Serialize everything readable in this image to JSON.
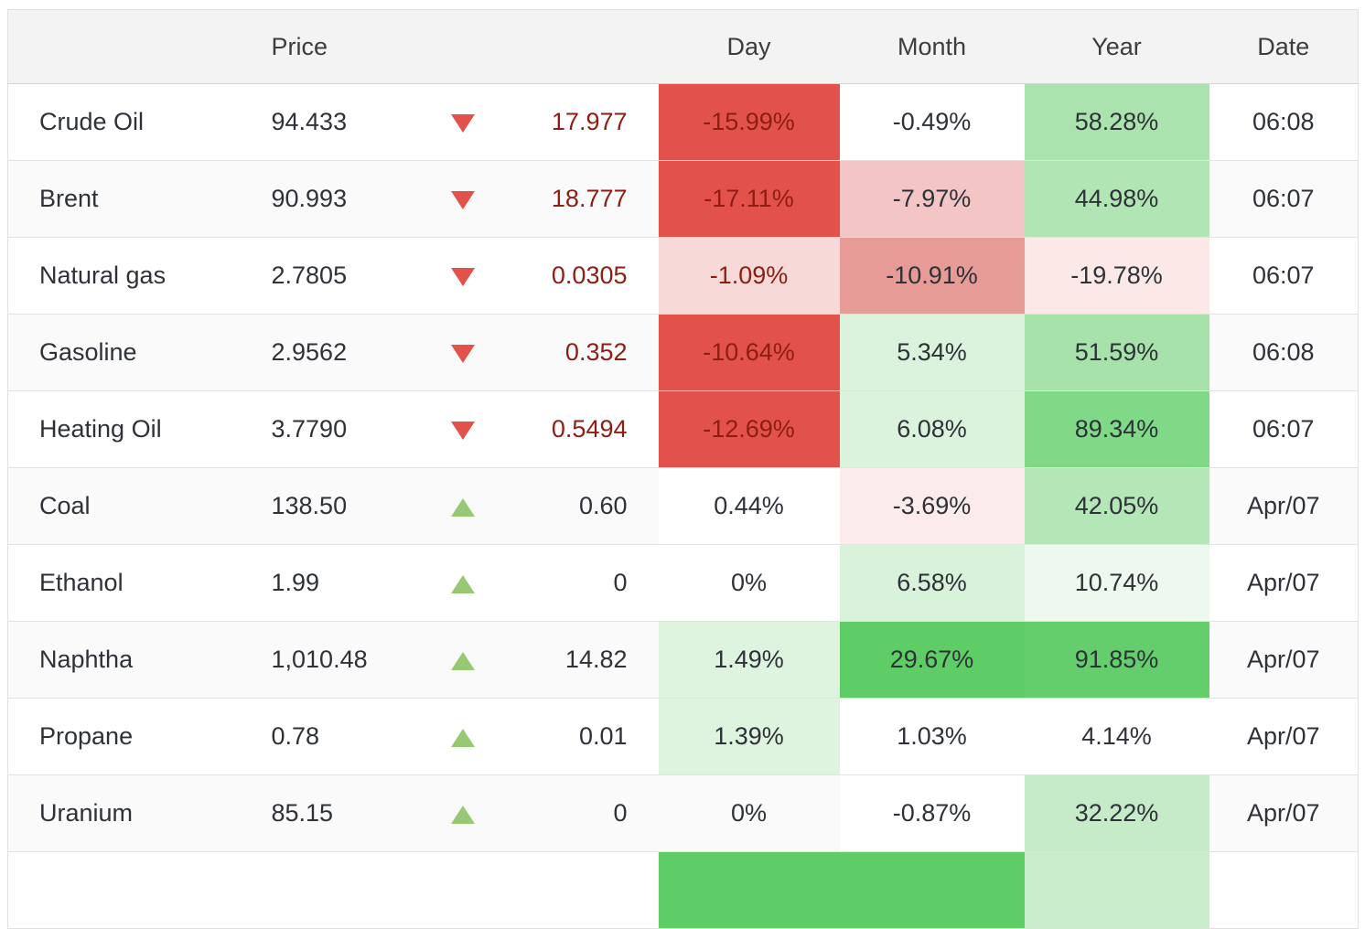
{
  "header": {
    "name": "",
    "price": "Price",
    "day": "Day",
    "month": "Month",
    "year": "Year",
    "date": "Date"
  },
  "colors": {
    "strong_red": "#e2524b",
    "dark_red_text": "#8e1d12",
    "medium_red": "#e79b97",
    "light_red": "#f3c6c5",
    "very_light_red": "#f7d9d8",
    "faint_red": "#fbe8e7",
    "strong_green": "#5ecd66",
    "medium_green": "#7fd986",
    "light_green": "#abe3ae",
    "pale_green": "#dbf3dc",
    "faint_green": "#edf9ee",
    "arrow_up_green": "#97c873",
    "arrow_down_red": "#e2524b",
    "header_bg": "#f3f3f3",
    "row_alt_bg": "#fafafa",
    "text": "#2e3238"
  },
  "rows": [
    {
      "name": "Crude Oil",
      "price": "94.433",
      "direction": "down",
      "change": "17.977",
      "change_color": "#8e1d12",
      "day": {
        "text": "-15.99%",
        "bg": "#e2524b",
        "color": "#8e1d12"
      },
      "month": {
        "text": "-0.49%",
        "bg": "#ffffff",
        "color": "#2e3238"
      },
      "year": {
        "text": "58.28%",
        "bg": "#abe3ae",
        "color": "#2e3238"
      },
      "date": "06:08"
    },
    {
      "name": "Brent",
      "price": "90.993",
      "direction": "down",
      "change": "18.777",
      "change_color": "#8e1d12",
      "day": {
        "text": "-17.11%",
        "bg": "#e2524b",
        "color": "#8e1d12"
      },
      "month": {
        "text": "-7.97%",
        "bg": "#f3c6c5",
        "color": "#2e3238"
      },
      "year": {
        "text": "44.98%",
        "bg": "#b2e5b4",
        "color": "#2e3238"
      },
      "date": "06:07"
    },
    {
      "name": "Natural gas",
      "price": "2.7805",
      "direction": "down",
      "change": "0.0305",
      "change_color": "#8e1d12",
      "day": {
        "text": "-1.09%",
        "bg": "#f7d9d8",
        "color": "#8e1d12"
      },
      "month": {
        "text": "-10.91%",
        "bg": "#e79b97",
        "color": "#2e3238"
      },
      "year": {
        "text": "-19.78%",
        "bg": "#fbe8e7",
        "color": "#2e3238"
      },
      "date": "06:07"
    },
    {
      "name": "Gasoline",
      "price": "2.9562",
      "direction": "down",
      "change": "0.352",
      "change_color": "#8e1d12",
      "day": {
        "text": "-10.64%",
        "bg": "#e2524b",
        "color": "#8e1d12"
      },
      "month": {
        "text": "5.34%",
        "bg": "#dbf3dc",
        "color": "#2e3238"
      },
      "year": {
        "text": "51.59%",
        "bg": "#a7e2ab",
        "color": "#2e3238"
      },
      "date": "06:08"
    },
    {
      "name": "Heating Oil",
      "price": "3.7790",
      "direction": "down",
      "change": "0.5494",
      "change_color": "#8e1d12",
      "day": {
        "text": "-12.69%",
        "bg": "#e2524b",
        "color": "#8e1d12"
      },
      "month": {
        "text": "6.08%",
        "bg": "#dbf3dc",
        "color": "#2e3238"
      },
      "year": {
        "text": "89.34%",
        "bg": "#7fd986",
        "color": "#2e3238"
      },
      "date": "06:07"
    },
    {
      "name": "Coal",
      "price": "138.50",
      "direction": "up",
      "change": "0.60",
      "change_color": "#2e3238",
      "day": {
        "text": "0.44%",
        "bg": "#ffffff",
        "color": "#2e3238"
      },
      "month": {
        "text": "-3.69%",
        "bg": "#fbeceb",
        "color": "#2e3238"
      },
      "year": {
        "text": "42.05%",
        "bg": "#b5e6b8",
        "color": "#2e3238"
      },
      "date": "Apr/07"
    },
    {
      "name": "Ethanol",
      "price": "1.99",
      "direction": "up",
      "change": "0",
      "change_color": "#2e3238",
      "day": {
        "text": "0%",
        "bg": null,
        "color": "#2e3238"
      },
      "month": {
        "text": "6.58%",
        "bg": "#d9f2da",
        "color": "#2e3238"
      },
      "year": {
        "text": "10.74%",
        "bg": "#edf9ee",
        "color": "#2e3238"
      },
      "date": "Apr/07"
    },
    {
      "name": "Naphtha",
      "price": "1,010.48",
      "direction": "up",
      "change": "14.82",
      "change_color": "#2e3238",
      "day": {
        "text": "1.49%",
        "bg": "#def4df",
        "color": "#2e3238"
      },
      "month": {
        "text": "29.67%",
        "bg": "#5ecd66",
        "color": "#2e3238"
      },
      "year": {
        "text": "91.85%",
        "bg": "#63ce6b",
        "color": "#2e3238"
      },
      "date": "Apr/07"
    },
    {
      "name": "Propane",
      "price": "0.78",
      "direction": "up",
      "change": "0.01",
      "change_color": "#2e3238",
      "day": {
        "text": "1.39%",
        "bg": "#def4df",
        "color": "#2e3238"
      },
      "month": {
        "text": "1.03%",
        "bg": "#ffffff",
        "color": "#2e3238"
      },
      "year": {
        "text": "4.14%",
        "bg": "#ffffff",
        "color": "#2e3238"
      },
      "date": "Apr/07"
    },
    {
      "name": "Uranium",
      "price": "85.15",
      "direction": "up",
      "change": "0",
      "change_color": "#2e3238",
      "day": {
        "text": "0%",
        "bg": null,
        "color": "#2e3238"
      },
      "month": {
        "text": "-0.87%",
        "bg": "#ffffff",
        "color": "#2e3238"
      },
      "year": {
        "text": "32.22%",
        "bg": "#c6ebc8",
        "color": "#2e3238"
      },
      "date": "Apr/07"
    }
  ],
  "partial_row": {
    "name": "",
    "price": "",
    "change": "",
    "day": {
      "text": "",
      "bg": "#5ecd66"
    },
    "month": {
      "text": "",
      "bg": "#5ecd66"
    },
    "year": {
      "text": "",
      "bg": "#c9edcb"
    },
    "date": ""
  }
}
